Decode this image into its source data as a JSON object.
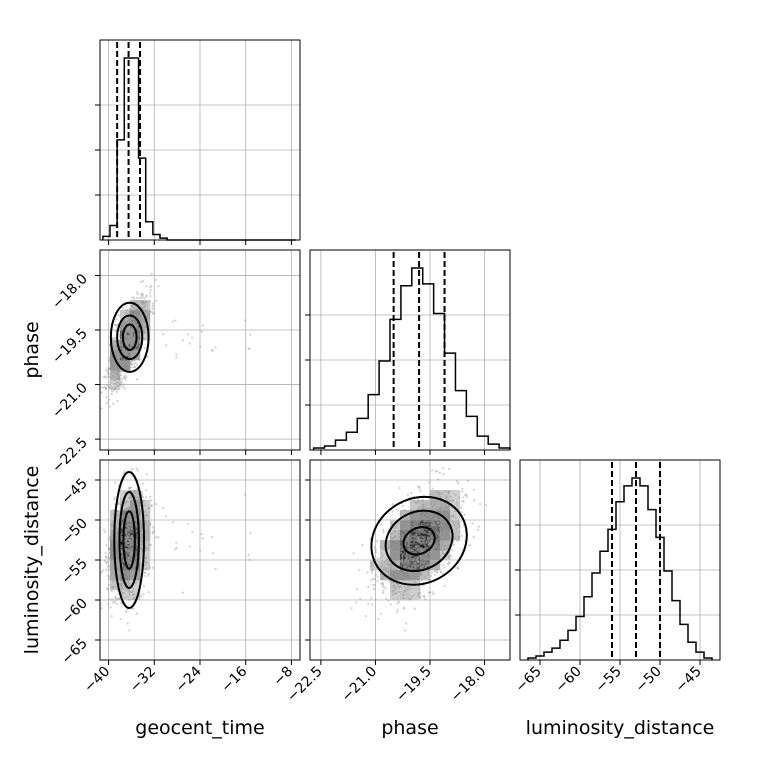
{
  "chart_data": {
    "type": "corner",
    "parameters": [
      "geocent_time",
      "phase",
      "luminosity_distance"
    ],
    "labels": {
      "geocent_time": "geocent_time",
      "phase": "phase",
      "luminosity_distance": "luminosity_distance"
    },
    "ranges": {
      "geocent_time": [
        -41.5,
        -6.5
      ],
      "phase": [
        -22.8,
        -17.3
      ],
      "luminosity_distance": [
        -67.5,
        -42.5
      ]
    },
    "ticks": {
      "geocent_time": [
        -40,
        -32,
        -24,
        -16,
        -8
      ],
      "phase": [
        -22.5,
        -21.0,
        -19.5,
        -18.0
      ],
      "luminosity_distance": [
        -65,
        -60,
        -55,
        -50,
        -45
      ]
    },
    "tick_labels": {
      "geocent_time": [
        "−40",
        "−32",
        "−24",
        "−16",
        "−8"
      ],
      "phase": [
        "−22.5",
        "−21.0",
        "−19.5",
        "−18.0"
      ],
      "luminosity_distance": [
        "−65",
        "−60",
        "−55",
        "−50",
        "−45"
      ]
    },
    "quantiles": {
      "geocent_time": [
        -38.5,
        -36.5,
        -34.5
      ],
      "phase": [
        -20.5,
        -19.8,
        -19.1
      ],
      "luminosity_distance": [
        -56,
        -53,
        -50
      ]
    },
    "histograms": {
      "geocent_time": {
        "edges": [
          -41,
          -39.75,
          -38.5,
          -37.25,
          -36,
          -34.75,
          -33.5,
          -32.25,
          -31,
          -29.75,
          -28.5,
          -27.25,
          -26,
          -24.75,
          -23.5,
          -22.25,
          -21,
          -19.75,
          -18.5,
          -17.25,
          -16,
          -14.75,
          -13.5,
          -12.25,
          -11,
          -9.75,
          -8.5,
          -7.25
        ],
        "counts": [
          2,
          8,
          55,
          100,
          100,
          45,
          10,
          3,
          1,
          0,
          0,
          0,
          0,
          0,
          0,
          0,
          0,
          0,
          0,
          0,
          0,
          0,
          0,
          0,
          0,
          0,
          0
        ]
      },
      "phase": {
        "edges": [
          -22.7,
          -22.4,
          -22.1,
          -21.8,
          -21.5,
          -21.2,
          -20.9,
          -20.6,
          -20.3,
          -20.0,
          -19.7,
          -19.4,
          -19.1,
          -18.8,
          -18.5,
          -18.2,
          -17.9,
          -17.6,
          -17.3
        ],
        "counts": [
          1,
          2,
          5,
          9,
          16,
          28,
          45,
          66,
          83,
          92,
          84,
          69,
          49,
          30,
          17,
          7,
          3,
          1
        ]
      },
      "luminosity_distance": {
        "edges": [
          -66.5,
          -65.5,
          -64.5,
          -63.5,
          -62.5,
          -61.5,
          -60.5,
          -59.5,
          -58.5,
          -57.5,
          -56.5,
          -55.5,
          -54.5,
          -53.5,
          -52.5,
          -51.5,
          -50.5,
          -49.5,
          -48.5,
          -47.5,
          -46.5,
          -45.5,
          -44.5,
          -43.5
        ],
        "counts": [
          1,
          2,
          4,
          6,
          10,
          15,
          22,
          32,
          44,
          55,
          66,
          80,
          88,
          92,
          88,
          76,
          62,
          45,
          30,
          18,
          9,
          4,
          1
        ]
      }
    },
    "grid": true,
    "colors": {
      "points": "#9a9a9a",
      "lines": "#000000",
      "density_dark": "#111111",
      "density_light": "#bdbdbd"
    }
  }
}
